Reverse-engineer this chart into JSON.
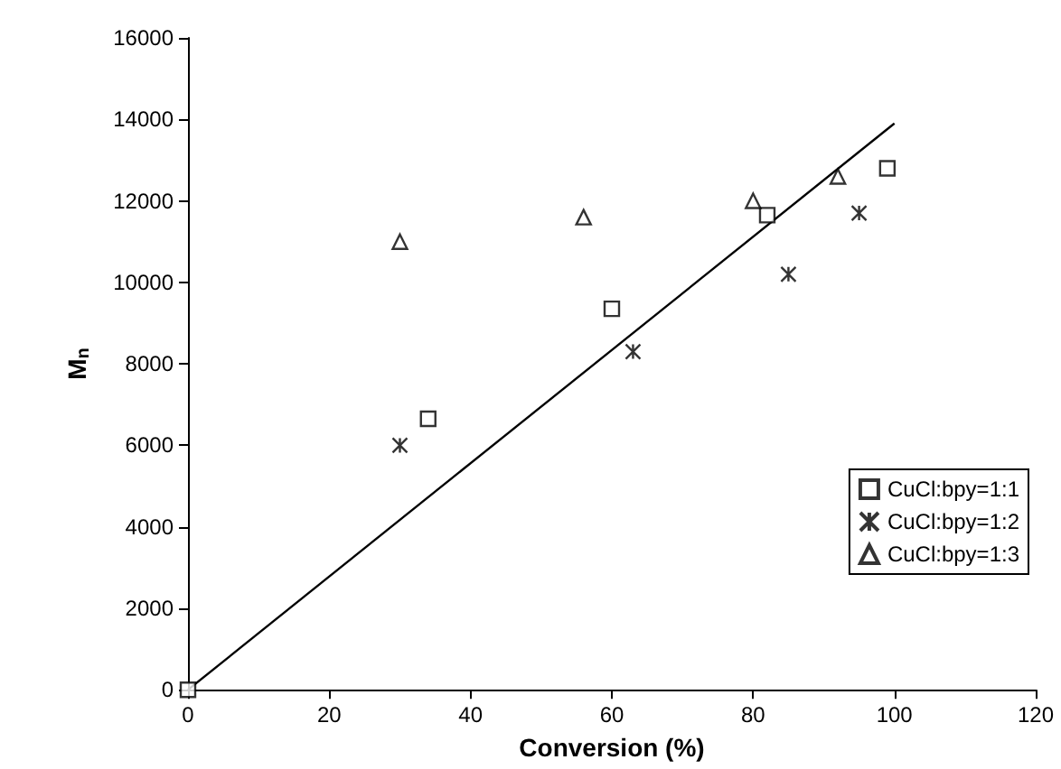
{
  "chart_data": {
    "type": "scatter",
    "xlabel": "Conversion (%)",
    "ylabel": "M$_{n}$",
    "xlim": [
      0,
      120
    ],
    "xticks": [
      0,
      20,
      40,
      60,
      80,
      100,
      120
    ],
    "ylim": [
      0,
      16000
    ],
    "yticks": [
      0,
      2000,
      4000,
      6000,
      8000,
      10000,
      12000,
      14000,
      16000
    ],
    "grid": false,
    "legend": "right",
    "series": [
      {
        "name": "CuCl:bpy=1:1",
        "color": "#000000",
        "marker": "square",
        "x": [
          0,
          34,
          60,
          82,
          99
        ],
        "values": [
          0,
          6650,
          9350,
          11650,
          12800
        ]
      },
      {
        "name": "CuCl:bpy=1:2",
        "color": "#000000",
        "marker": "cross",
        "x": [
          30,
          63,
          85,
          95
        ],
        "values": [
          6000,
          8300,
          10200,
          11700
        ]
      },
      {
        "name": "CuCl:bpy=1:3",
        "color": "#000000",
        "marker": "triangle",
        "x": [
          30,
          56,
          80,
          92
        ],
        "values": [
          11000,
          11600,
          12000,
          12600
        ]
      },
      {
        "type": "line",
        "color": "#000000",
        "marker": "none",
        "x": [
          0,
          100
        ],
        "values": [
          0,
          13900
        ]
      }
    ]
  }
}
